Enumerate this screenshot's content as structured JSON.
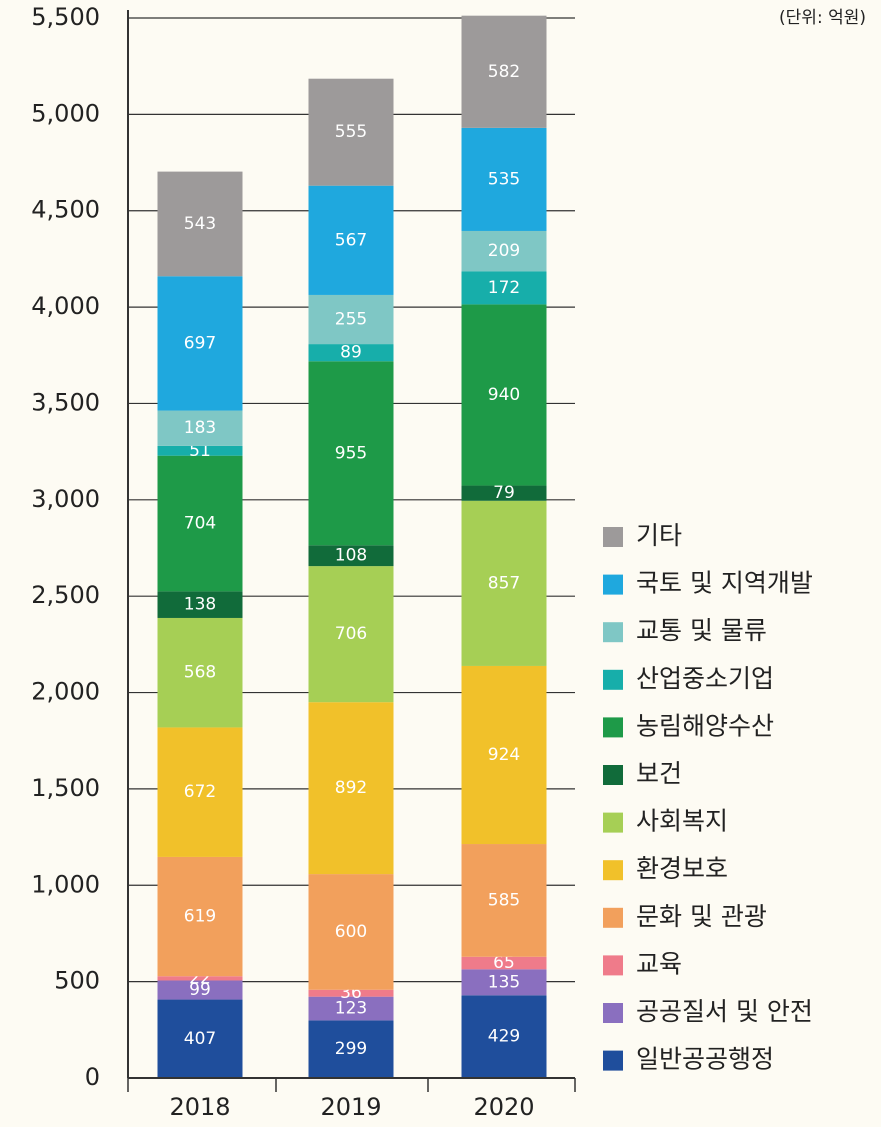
{
  "chart_data": {
    "type": "stacked_bar",
    "unit": "(단위: 억원)",
    "categories": [
      "2018",
      "2019",
      "2020"
    ],
    "series": [
      {
        "name": "일반공공행정",
        "color": "#1f4e9c",
        "values": [
          407,
          299,
          429
        ]
      },
      {
        "name": "공공질서 및 안전",
        "color": "#8a6fbf",
        "values": [
          99,
          123,
          135
        ]
      },
      {
        "name": "교육",
        "color": "#ef7b8a",
        "values": [
          22,
          36,
          65
        ]
      },
      {
        "name": "문화 및 관광",
        "color": "#f2a05c",
        "values": [
          619,
          600,
          585
        ]
      },
      {
        "name": "환경보호",
        "color": "#f1c12a",
        "values": [
          672,
          892,
          924
        ]
      },
      {
        "name": "사회복지",
        "color": "#a6cf55",
        "values": [
          568,
          706,
          857
        ]
      },
      {
        "name": "보건",
        "color": "#116b3a",
        "values": [
          138,
          108,
          79
        ]
      },
      {
        "name": "농림해양수산",
        "color": "#1e9a48",
        "values": [
          704,
          955,
          940
        ]
      },
      {
        "name": "산업중소기업",
        "color": "#17aeaa",
        "values": [
          51,
          89,
          172
        ]
      },
      {
        "name": "교통 및 물류",
        "color": "#7fc7c5",
        "values": [
          183,
          255,
          209
        ]
      },
      {
        "name": "국토 및 지역개발",
        "color": "#1fa8de",
        "values": [
          697,
          567,
          535
        ]
      },
      {
        "name": "기타",
        "color": "#9d9a9a",
        "values": [
          543,
          555,
          582
        ]
      }
    ],
    "ylim": [
      0,
      5500
    ],
    "yticks": [
      0,
      500,
      {
        "value": 1000,
        "label": "1,000"
      },
      {
        "value": 1500,
        "label": "1,500"
      },
      {
        "value": 2000,
        "label": "2,000"
      },
      {
        "value": 2500,
        "label": "2,500"
      },
      {
        "value": 3000,
        "label": "3,000"
      },
      {
        "value": 3500,
        "label": "3,500"
      },
      {
        "value": 4000,
        "label": "4,000"
      },
      {
        "value": 4500,
        "label": "4,500"
      },
      {
        "value": 5000,
        "label": "5,000"
      },
      {
        "value": 5500,
        "label": "5,500"
      }
    ],
    "grid": true
  }
}
